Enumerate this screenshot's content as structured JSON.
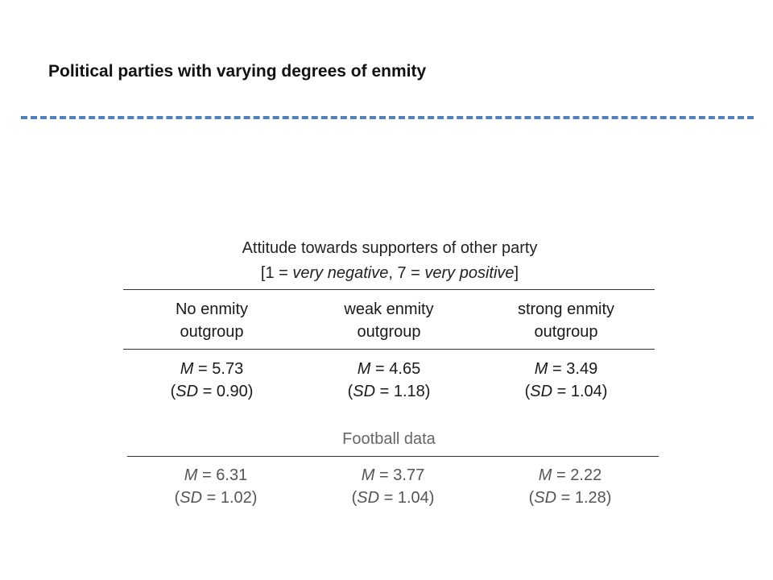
{
  "title": "Political parties with varying degrees of enmity",
  "caption": {
    "line1": "Attitude towards supporters of other party",
    "line2_open": "[1 = ",
    "line2_neg": "very negative",
    "line2_mid": ", 7 = ",
    "line2_pos": "very positive",
    "line2_close": "]"
  },
  "columns": [
    {
      "line1": "No enmity",
      "line2": "outgroup"
    },
    {
      "line1": "weak enmity",
      "line2": "outgroup"
    },
    {
      "line1": "strong enmity",
      "line2": "outgroup"
    }
  ],
  "labels": {
    "m": "M",
    "sd": "SD"
  },
  "party_data": [
    {
      "m": " = 5.73",
      "sd": " = 0.90)"
    },
    {
      "m": " = 4.65",
      "sd": " = 1.18)"
    },
    {
      "m": " = 3.49",
      "sd": " = 1.04)"
    }
  ],
  "football_label": "Football data",
  "football_data": [
    {
      "m": " = 6.31",
      "sd": " = 1.02)"
    },
    {
      "m": " = 3.77",
      "sd": " = 1.04)"
    },
    {
      "m": " = 2.22",
      "sd": " = 1.28)"
    }
  ],
  "colors": {
    "dash": "#4f81bd"
  }
}
